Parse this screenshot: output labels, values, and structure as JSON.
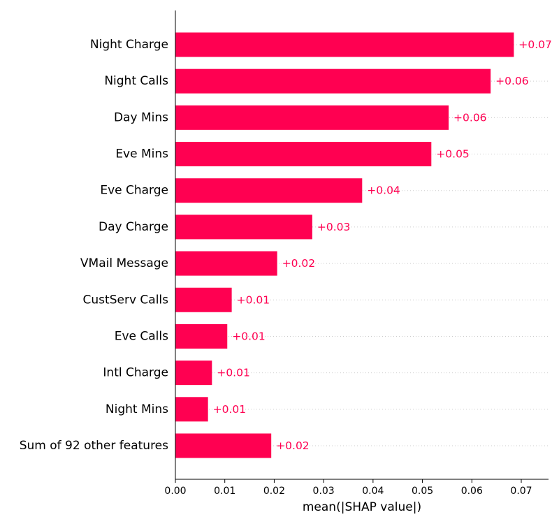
{
  "chart_data": {
    "type": "bar",
    "orientation": "horizontal",
    "title": "",
    "xlabel": "mean(|SHAP value|)",
    "ylabel": "",
    "xlim": [
      0,
      0.0755
    ],
    "xticks": [
      0.0,
      0.01,
      0.02,
      0.03,
      0.04,
      0.05,
      0.06,
      0.07
    ],
    "xtick_labels": [
      "0.00",
      "0.01",
      "0.02",
      "0.03",
      "0.04",
      "0.05",
      "0.06",
      "0.07"
    ],
    "bar_color": "#ff0051",
    "label_color": "#ff0051",
    "grid": "dotted horizontal guide lines",
    "categories": [
      "Night Charge",
      "Night Calls",
      "Day Mins",
      "Eve Mins",
      "Eve Charge",
      "Day Charge",
      "VMail Message",
      "CustServ Calls",
      "Eve Calls",
      "Intl Charge",
      "Night Mins",
      "Sum of 92 other features"
    ],
    "values": [
      0.0685,
      0.0638,
      0.0553,
      0.0518,
      0.0378,
      0.0277,
      0.0206,
      0.0114,
      0.0105,
      0.0074,
      0.0066,
      0.0194
    ],
    "value_labels": [
      "+0.07",
      "+0.06",
      "+0.06",
      "+0.05",
      "+0.04",
      "+0.03",
      "+0.02",
      "+0.01",
      "+0.01",
      "+0.01",
      "+0.01",
      "+0.02"
    ]
  }
}
